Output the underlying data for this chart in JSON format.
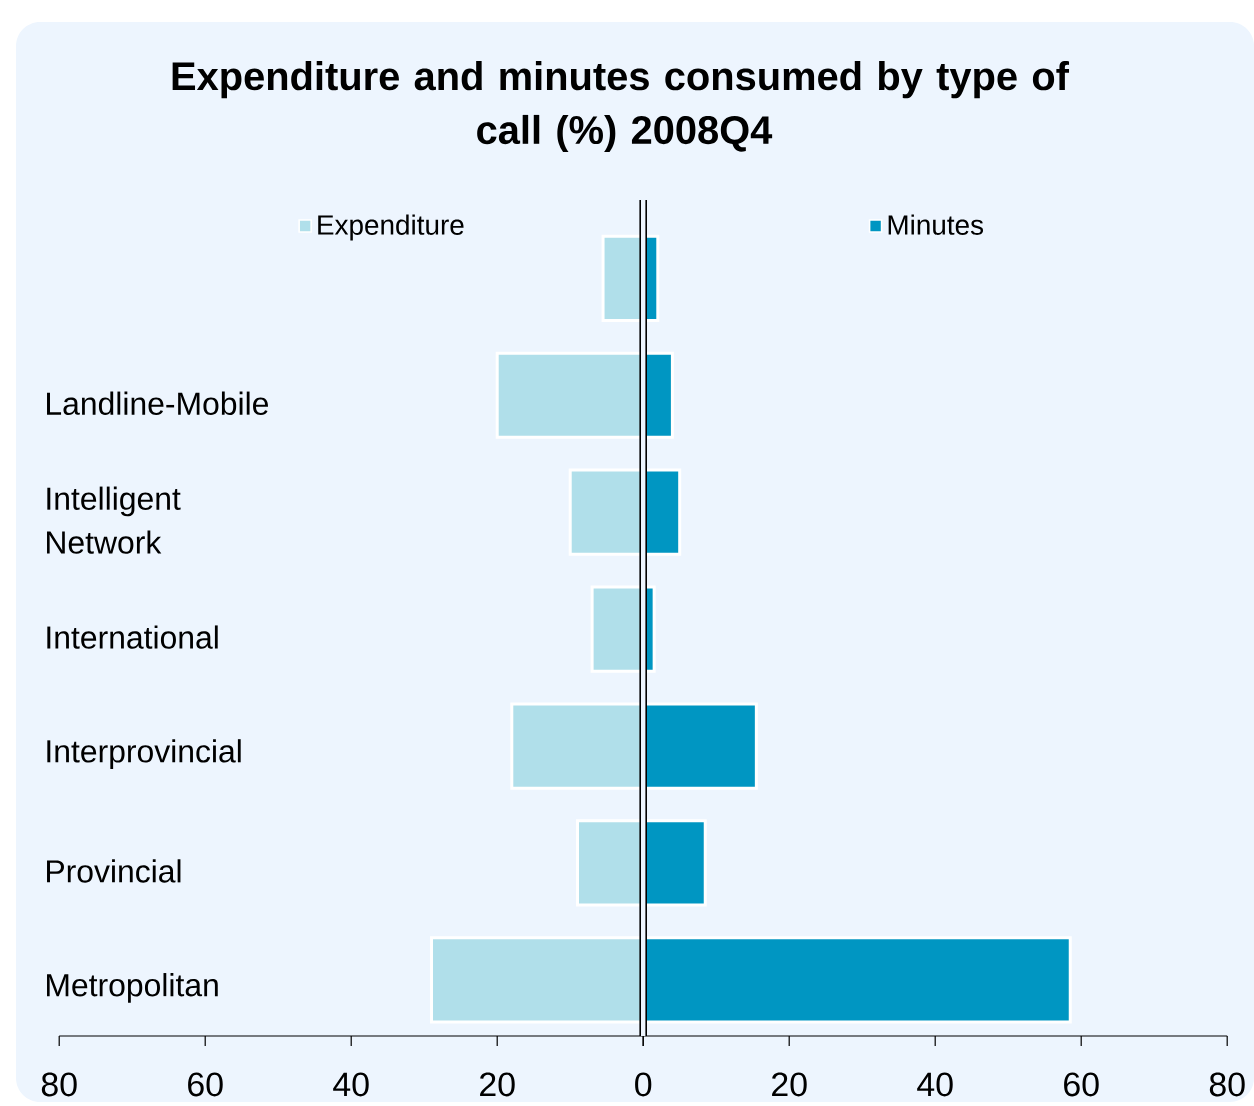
{
  "chart_data": {
    "type": "bar",
    "orientation": "horizontal",
    "stacked": true,
    "title": "Expenditure and minutes consumed by type of call (%) 2008Q4",
    "categories": [
      null,
      "Landline-Mobile",
      "Intelligent Network",
      "International",
      "Interprovincial",
      "Provincial",
      "Metropolitan"
    ],
    "series": [
      {
        "name": "Expenditure",
        "color": "#b0dfea",
        "values": [
          -5.5,
          -20,
          -10,
          -7,
          -18,
          -9,
          -29
        ]
      },
      {
        "name": "Minutes",
        "color": "#0096c2",
        "values": [
          2,
          4,
          5,
          1.5,
          15.5,
          8.5,
          58.5
        ]
      }
    ],
    "xlim": [
      -80,
      80
    ],
    "xticks": [
      {
        "value": -80,
        "label": "80"
      },
      {
        "value": -60,
        "label": "60"
      },
      {
        "value": -40,
        "label": "40"
      },
      {
        "value": -20,
        "label": "20"
      },
      0,
      20,
      40,
      60,
      80
    ],
    "legend": "top"
  }
}
